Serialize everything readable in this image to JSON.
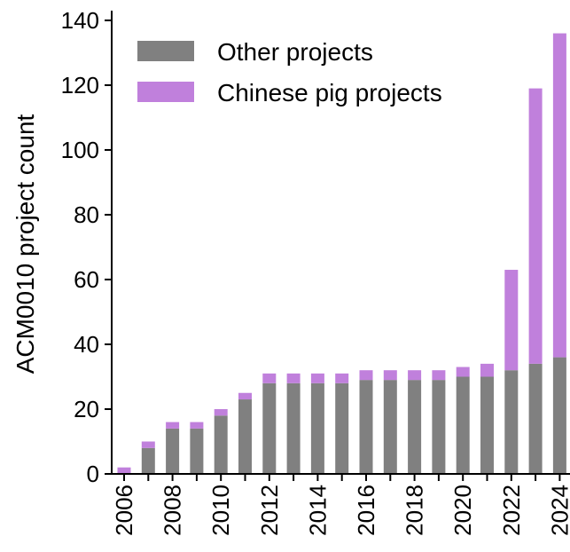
{
  "chart_data": {
    "type": "bar",
    "stacked": true,
    "title": "",
    "xlabel": "",
    "ylabel": "ACM0010 project count",
    "ylim": [
      0,
      143
    ],
    "yticks": [
      0,
      20,
      40,
      60,
      80,
      100,
      120,
      140
    ],
    "categories": [
      "2006",
      "2007",
      "2008",
      "2009",
      "2010",
      "2011",
      "2012",
      "2013",
      "2014",
      "2015",
      "2016",
      "2017",
      "2018",
      "2019",
      "2020",
      "2021",
      "2022",
      "2023",
      "2024"
    ],
    "xtick_labels": [
      "2006",
      "",
      "2008",
      "",
      "2010",
      "",
      "2012",
      "",
      "2014",
      "",
      "2016",
      "",
      "2018",
      "",
      "2020",
      "",
      "2022",
      "",
      "2024"
    ],
    "series": [
      {
        "name": "Other projects",
        "color": "#808080",
        "values": [
          0,
          8,
          14,
          14,
          18,
          23,
          28,
          28,
          28,
          28,
          29,
          29,
          29,
          29,
          30,
          30,
          32,
          34,
          36
        ]
      },
      {
        "name": "Chinese pig projects",
        "color": "#c080dc",
        "values": [
          2,
          2,
          2,
          2,
          2,
          2,
          3,
          3,
          3,
          3,
          3,
          3,
          3,
          3,
          3,
          4,
          31,
          85,
          100
        ]
      }
    ],
    "legend_position": "top-left",
    "grid": false
  }
}
